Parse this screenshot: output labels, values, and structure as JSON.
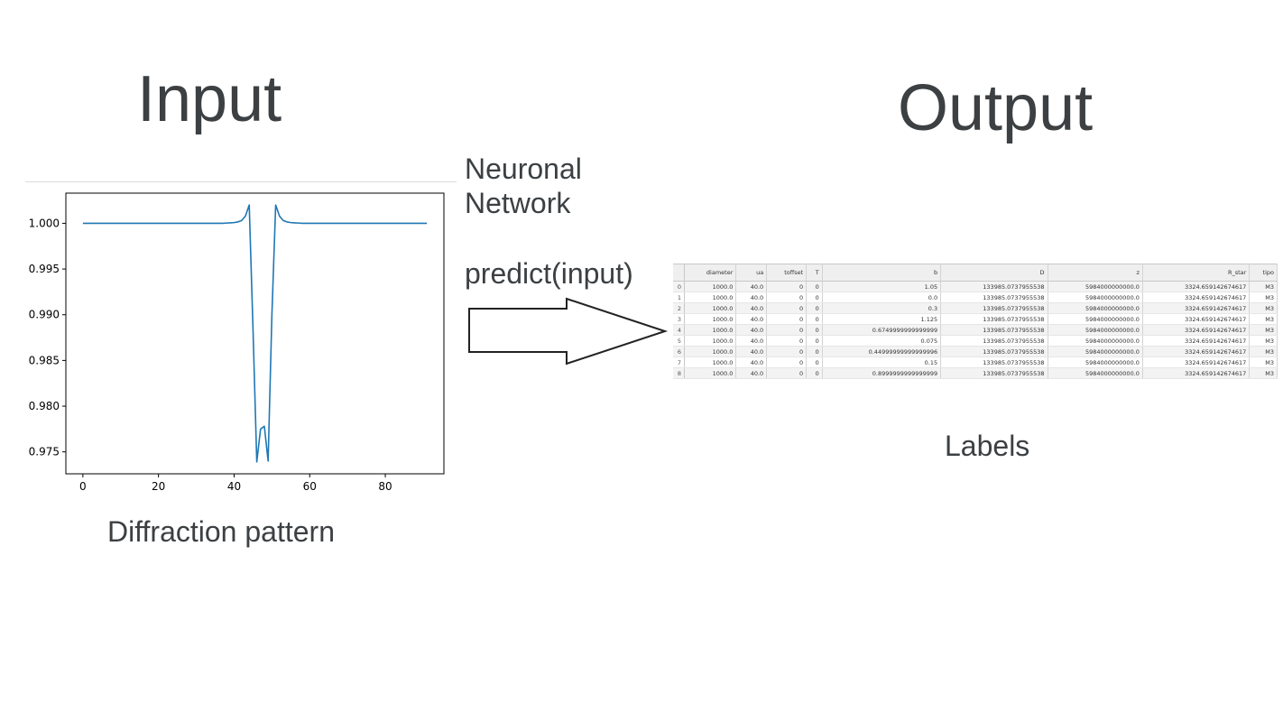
{
  "titles": {
    "input": "Input",
    "output": "Output"
  },
  "network": {
    "line1": "Neuronal",
    "line2": "Network",
    "call": "predict(input)"
  },
  "captions": {
    "input": "Diffraction pattern",
    "output": "Labels"
  },
  "chart_data": {
    "type": "line",
    "x": [
      0,
      1,
      2,
      3,
      4,
      5,
      6,
      7,
      8,
      9,
      10,
      11,
      12,
      13,
      14,
      15,
      16,
      17,
      18,
      19,
      20,
      21,
      22,
      23,
      24,
      25,
      26,
      27,
      28,
      29,
      30,
      31,
      32,
      33,
      34,
      35,
      36,
      37,
      38,
      39,
      40,
      41,
      42,
      43,
      44,
      45,
      46,
      47,
      48,
      49,
      50,
      51,
      52,
      53,
      54,
      55,
      56,
      57,
      58,
      59,
      60,
      61,
      62,
      63,
      64,
      65,
      66,
      67,
      68,
      69,
      70,
      71,
      72,
      73,
      74,
      75,
      76,
      77,
      78,
      79,
      80,
      81,
      82,
      83,
      84,
      85,
      86,
      87,
      88,
      89,
      90,
      91
    ],
    "series": [
      {
        "values": [
          1.0,
          1.0,
          1.0,
          1.0,
          1.0,
          1.0,
          1.0,
          1.0,
          1.0,
          1.0,
          1.0,
          1.0,
          1.0,
          1.0,
          1.0,
          1.0,
          1.0,
          1.0,
          1.0,
          1.0,
          1.0,
          1.0,
          1.0,
          1.0,
          1.0,
          1.0,
          1.0,
          1.0,
          1.0,
          1.0,
          1.0,
          1.0,
          1.0,
          1.0,
          1.0,
          1.0,
          1.0,
          1.0,
          1.00003,
          1.00005,
          1.00008,
          1.00015,
          1.0003,
          1.0008,
          1.002,
          0.9885,
          0.9739,
          0.9775,
          0.9778,
          0.974,
          0.99,
          1.002,
          1.0008,
          1.0003,
          1.00015,
          1.00008,
          1.00005,
          1.00003,
          1.0,
          1.0,
          1.0,
          1.0,
          1.0,
          1.0,
          1.0,
          1.0,
          1.0,
          1.0,
          1.0,
          1.0,
          1.0,
          1.0,
          1.0,
          1.0,
          1.0,
          1.0,
          1.0,
          1.0,
          1.0,
          1.0,
          1.0,
          1.0,
          1.0,
          1.0,
          1.0,
          1.0,
          1.0,
          1.0,
          1.0,
          1.0,
          1.0,
          1.0
        ],
        "color": "#1f77b4"
      }
    ],
    "xticks": [
      0,
      20,
      40,
      60,
      80
    ],
    "yticks": [
      0.975,
      0.98,
      0.985,
      0.99,
      0.995,
      1.0
    ],
    "ytick_labels": [
      "0.975",
      "0.980",
      "0.985",
      "0.990",
      "0.995",
      "1.000"
    ],
    "xlim": [
      -4.5,
      95.5
    ],
    "ylim": [
      0.9726,
      1.0033
    ],
    "grid": false
  },
  "table": {
    "columns": [
      "diameter",
      "ua",
      "toffset",
      "T",
      "b",
      "D",
      "z",
      "R_star",
      "tipo"
    ],
    "index": [
      "0",
      "1",
      "2",
      "3",
      "4",
      "5",
      "6",
      "7",
      "8"
    ],
    "rows": [
      [
        "1000.0",
        "40.0",
        "0",
        "0",
        "1.05",
        "133985.0737955538",
        "5984000000000.0",
        "3324.659142674617",
        "M3"
      ],
      [
        "1000.0",
        "40.0",
        "0",
        "0",
        "0.0",
        "133985.0737955538",
        "5984000000000.0",
        "3324.659142674617",
        "M3"
      ],
      [
        "1000.0",
        "40.0",
        "0",
        "0",
        "0.3",
        "133985.0737955538",
        "5984000000000.0",
        "3324.659142674617",
        "M3"
      ],
      [
        "1000.0",
        "40.0",
        "0",
        "0",
        "1.125",
        "133985.0737955538",
        "5984000000000.0",
        "3324.659142674617",
        "M3"
      ],
      [
        "1000.0",
        "40.0",
        "0",
        "0",
        "0.6749999999999999",
        "133985.0737955538",
        "5984000000000.0",
        "3324.659142674617",
        "M3"
      ],
      [
        "1000.0",
        "40.0",
        "0",
        "0",
        "0.075",
        "133985.0737955538",
        "5984000000000.0",
        "3324.659142674617",
        "M3"
      ],
      [
        "1000.0",
        "40.0",
        "0",
        "0",
        "0.44999999999999996",
        "133985.0737955538",
        "5984000000000.0",
        "3324.659142674617",
        "M3"
      ],
      [
        "1000.0",
        "40.0",
        "0",
        "0",
        "0.15",
        "133985.0737955538",
        "5984000000000.0",
        "3324.659142674617",
        "M3"
      ],
      [
        "1000.0",
        "40.0",
        "0",
        "0",
        "0.8999999999999999",
        "133985.0737955538",
        "5984000000000.0",
        "3324.659142674617",
        "M3"
      ]
    ]
  }
}
